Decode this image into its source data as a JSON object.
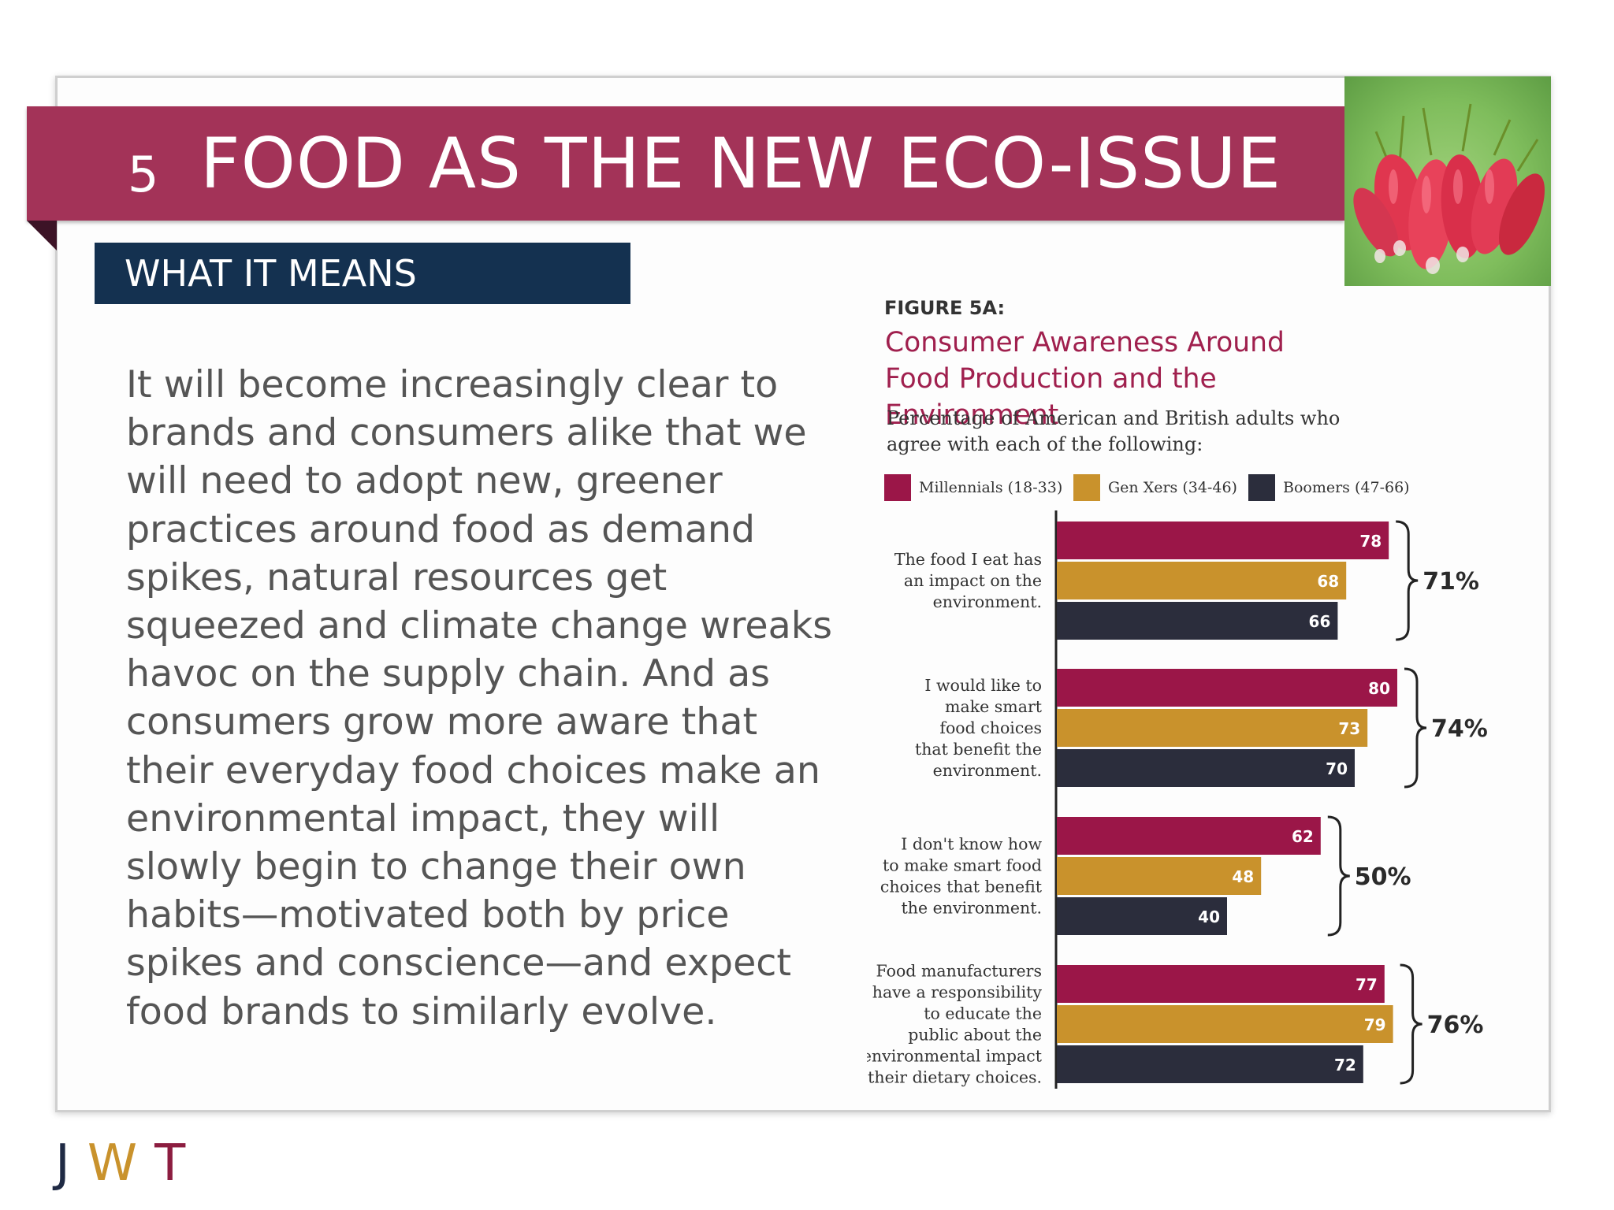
{
  "title": {
    "number": "5",
    "text": "FOOD AS THE NEW ECO-ISSUE"
  },
  "section": {
    "label": "WHAT IT MEANS"
  },
  "body": {
    "text": "It will become increasingly clear to brands and consumers alike that we will need to adopt new, greener practices around food as demand spikes, natural resources get squeezed and climate change wreaks havoc on the supply chain. And as consumers grow more aware that their everyday food choices make an environmental impact, they will slowly begin to change their own habits—motivated both by price spikes and conscience—and expect food brands to similarly evolve."
  },
  "logo": {
    "letters": [
      "J",
      "W",
      "T"
    ]
  },
  "colors": {
    "title_band": "#a33358",
    "section_band": "#143150",
    "millennials": "#9b1648",
    "gen_x": "#c9922c",
    "boomers": "#2b2d3c",
    "logo_j": "#1f2a44",
    "logo_w": "#c9922c",
    "logo_t": "#8c1d40"
  },
  "chart_data": {
    "type": "bar",
    "orientation": "horizontal",
    "figure_label": "FIGURE 5A:",
    "title": "Consumer Awareness Around Food Production and the Environment",
    "subtitle": "Percentage of American and British adults who agree with each of the following:",
    "legend_position": "top",
    "xlim": [
      0,
      100
    ],
    "categories": [
      "The food I eat has an impact on the environment.",
      "I would like to make smart food choices that benefit the environment.",
      "I don't know how to make smart food choices that benefit the environment.",
      "Food manufacturers have a responsibility to educate the public about the environmental impact of their dietary choices."
    ],
    "category_lines": [
      [
        "The food I eat has",
        "an impact on the",
        "environment."
      ],
      [
        "I would like to",
        "make smart",
        "food choices",
        "that benefit the",
        "environment."
      ],
      [
        "I don't know how",
        "to make smart food",
        "choices that benefit",
        "the environment."
      ],
      [
        "Food manufacturers",
        "have a responsibility",
        "to educate the",
        "public about the",
        "environmental impact",
        "of their dietary choices."
      ]
    ],
    "series": [
      {
        "name": "Millennials (18-33)",
        "values": [
          78,
          80,
          62,
          77
        ]
      },
      {
        "name": "Gen Xers (34-46)",
        "values": [
          68,
          73,
          48,
          79
        ]
      },
      {
        "name": "Boomers (47-66)",
        "values": [
          66,
          70,
          40,
          72
        ]
      }
    ],
    "totals": [
      "71%",
      "74%",
      "50%",
      "76%"
    ]
  }
}
